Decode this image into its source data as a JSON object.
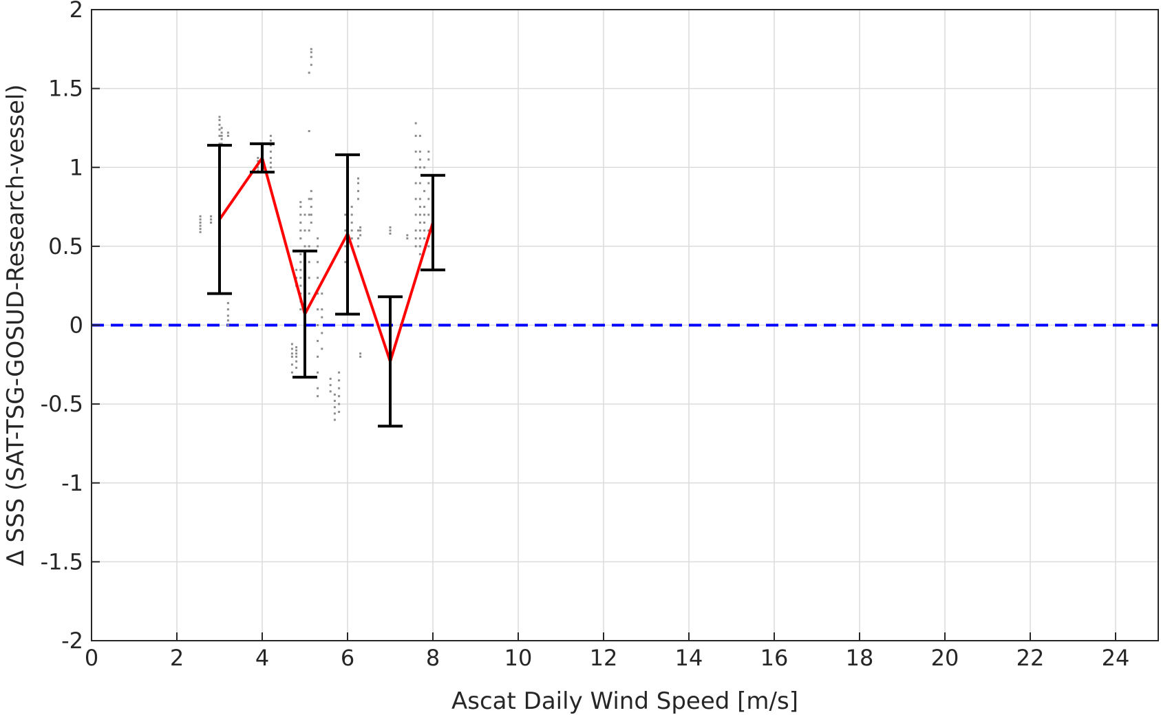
{
  "chart_data": {
    "type": "line",
    "title": "",
    "xlabel": "Ascat Daily Wind Speed [m/s]",
    "ylabel": "Δ SSS (SAT-TSG-GOSUD-Research-vessel)",
    "xlim": [
      0,
      25
    ],
    "ylim": [
      -2,
      2
    ],
    "xticks": [
      0,
      2,
      4,
      6,
      8,
      10,
      12,
      14,
      16,
      18,
      20,
      22,
      24
    ],
    "xtick_labels": [
      "0",
      "2",
      "4",
      "6",
      "8",
      "10",
      "12",
      "14",
      "16",
      "18",
      "20",
      "22",
      "24"
    ],
    "yticks": [
      -2,
      -1.5,
      -1,
      -0.5,
      0,
      0.5,
      1,
      1.5,
      2
    ],
    "ytick_labels": [
      "-2",
      "-1.5",
      "-1",
      "-0.5",
      "0",
      "0.5",
      "1",
      "1.5",
      "2"
    ],
    "grid": true,
    "colors": {
      "mean_line": "#ff0000",
      "error_bars": "#000000",
      "reference_line": "#0000ff",
      "scatter": "#8c8c8c",
      "grid": "#dcdcdc"
    },
    "mean_series": {
      "x": [
        3,
        4,
        5,
        6,
        7,
        8
      ],
      "y": [
        0.67,
        1.06,
        0.07,
        0.58,
        -0.23,
        0.65
      ],
      "err_low": [
        0.2,
        0.97,
        -0.33,
        0.07,
        -0.64,
        0.35
      ],
      "err_high": [
        1.14,
        1.15,
        0.47,
        1.08,
        0.18,
        0.95
      ]
    },
    "reference_line": {
      "y": 0,
      "style": "dashed"
    },
    "scatter_clusters": [
      {
        "x": 2.55,
        "y": [
          0.59,
          0.61,
          0.63,
          0.65,
          0.67,
          0.69
        ]
      },
      {
        "x": 2.8,
        "y": [
          0.65,
          0.67,
          0.69
        ]
      },
      {
        "x": 3.0,
        "y": [
          0.95,
          1.0,
          1.05,
          1.1,
          1.15,
          1.2,
          1.24,
          1.27,
          1.3,
          1.32
        ]
      },
      {
        "x": 3.05,
        "y": [
          1.15,
          1.18,
          1.2,
          1.22,
          1.25
        ]
      },
      {
        "x": 3.2,
        "y": [
          0.0,
          0.03,
          0.06,
          0.1,
          0.14,
          1.2,
          1.22
        ]
      },
      {
        "x": 3.9,
        "y": [
          0.98,
          1.0,
          1.02,
          1.04,
          1.06
        ]
      },
      {
        "x": 4.2,
        "y": [
          1.0,
          1.03,
          1.06,
          1.1,
          1.14,
          1.17,
          1.2
        ]
      },
      {
        "x": 4.7,
        "y": [
          -0.3,
          -0.25,
          -0.2,
          -0.18,
          -0.15,
          -0.12
        ]
      },
      {
        "x": 4.8,
        "y": [
          -0.27,
          -0.23,
          -0.2,
          -0.18,
          -0.16,
          -0.14,
          0.25,
          0.3,
          0.35
        ]
      },
      {
        "x": 4.9,
        "y": [
          0.1,
          0.15,
          0.2,
          0.25,
          0.3,
          0.35,
          0.4,
          0.45,
          0.55,
          0.6,
          0.65,
          0.7,
          0.75,
          0.78
        ]
      },
      {
        "x": 5.0,
        "y": [
          -0.3,
          -0.2,
          -0.1,
          0.0,
          0.1,
          0.2,
          0.3,
          0.4,
          0.5,
          0.6,
          0.7
        ]
      },
      {
        "x": 5.1,
        "y": [
          0.2,
          0.3,
          0.4,
          0.5,
          0.6,
          0.7,
          0.8,
          1.23,
          1.6
        ]
      },
      {
        "x": 5.15,
        "y": [
          0.65,
          0.7,
          0.75,
          0.8,
          0.85,
          1.65,
          1.7,
          1.73,
          1.75
        ]
      },
      {
        "x": 5.3,
        "y": [
          -0.45,
          -0.4,
          -0.3,
          -0.2,
          -0.1,
          0.0,
          0.1,
          0.2,
          0.3,
          0.4,
          0.5,
          0.55
        ]
      },
      {
        "x": 5.4,
        "y": [
          -0.15,
          -0.05,
          0.05,
          0.1,
          0.2
        ]
      },
      {
        "x": 5.6,
        "y": [
          -0.42,
          -0.38,
          -0.34
        ]
      },
      {
        "x": 5.7,
        "y": [
          -0.6,
          -0.56,
          -0.52,
          -0.48,
          -0.44
        ]
      },
      {
        "x": 5.8,
        "y": [
          -0.55,
          -0.5,
          -0.45,
          -0.4,
          -0.35,
          -0.3
        ]
      },
      {
        "x": 5.95,
        "y": [
          0.4,
          0.5,
          0.6,
          0.7
        ]
      },
      {
        "x": 6.1,
        "y": [
          0.55,
          0.6,
          0.65,
          0.7,
          0.75
        ]
      },
      {
        "x": 6.25,
        "y": [
          0.5,
          0.55,
          0.6,
          0.8,
          0.85,
          0.9,
          0.93
        ]
      },
      {
        "x": 6.3,
        "y": [
          0.57,
          0.6,
          0.62,
          -0.2,
          -0.18
        ]
      },
      {
        "x": 7.0,
        "y": [
          0.58,
          0.6,
          0.62
        ]
      },
      {
        "x": 7.4,
        "y": [
          0.55,
          0.57
        ]
      },
      {
        "x": 7.6,
        "y": [
          0.5,
          0.55,
          0.6,
          0.7,
          0.8,
          0.9,
          1.0,
          1.1,
          1.2,
          1.28
        ]
      },
      {
        "x": 7.7,
        "y": [
          0.45,
          0.5,
          0.55,
          0.6,
          0.65,
          0.7,
          0.75,
          0.8,
          0.9,
          1.0,
          1.05,
          1.1,
          1.2
        ]
      },
      {
        "x": 7.8,
        "y": [
          0.55,
          0.6,
          0.65,
          0.7,
          0.75,
          0.85,
          0.95,
          1.0
        ]
      },
      {
        "x": 7.9,
        "y": [
          0.5,
          0.6,
          0.7,
          0.8,
          0.9,
          1.05,
          1.1
        ]
      },
      {
        "x": 8.0,
        "y": [
          0.45,
          0.5,
          0.55,
          0.6
        ]
      }
    ]
  }
}
